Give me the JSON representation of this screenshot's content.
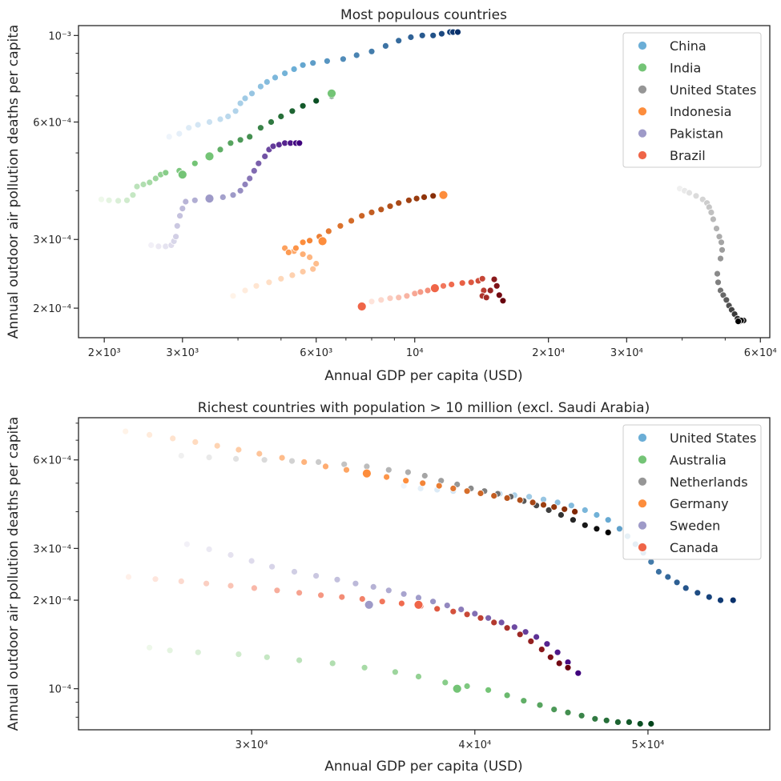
{
  "chart_data": [
    {
      "type": "scatter",
      "title": "Most populous countries",
      "xlabel": "Annual GDP per capita (USD)",
      "ylabel": "Annual outdoor air pollution deaths per capita",
      "xscale": "log",
      "yscale": "log",
      "xlim": [
        1750,
        63000
      ],
      "ylim": [
        0.000168,
        0.00106
      ],
      "legend_position": "top-right",
      "x_ticks": [
        {
          "value": 2000,
          "label": "2×10³"
        },
        {
          "value": 3000,
          "label": "3×10³"
        },
        {
          "value": 6000,
          "label": "6×10³"
        },
        {
          "value": 10000,
          "label": "10⁴"
        },
        {
          "value": 20000,
          "label": "2×10⁴"
        },
        {
          "value": 30000,
          "label": "3×10⁴"
        },
        {
          "value": 60000,
          "label": "6×10⁴"
        }
      ],
      "x_minor_ticks": [
        4000,
        5000,
        7000,
        8000,
        9000,
        40000,
        50000
      ],
      "y_ticks": [
        {
          "value": 0.0002,
          "label": "2×10⁻⁴"
        },
        {
          "value": 0.0003,
          "label": "3×10⁻⁴"
        },
        {
          "value": 0.0006,
          "label": "6×10⁻⁴"
        },
        {
          "value": 0.001,
          "label": "10⁻³"
        }
      ],
      "y_minor_ticks": [
        0.0004,
        0.0005,
        0.0007,
        0.0008,
        0.0009
      ],
      "series": [
        {
          "name": "China",
          "color": "#6baed6",
          "light": "#eef4fb",
          "dark": "#08306b",
          "x": [
            2800,
            2950,
            3100,
            3250,
            3450,
            3650,
            3800,
            3950,
            4050,
            4150,
            4300,
            4500,
            4650,
            4850,
            5100,
            5350,
            5600,
            5900,
            6350,
            6900,
            7400,
            8000,
            8600,
            9200,
            9800,
            10400,
            11000,
            11500,
            12000,
            12200,
            12500
          ],
          "y": [
            0.00055,
            0.00056,
            0.00058,
            0.00059,
            0.0006,
            0.00061,
            0.00062,
            0.00064,
            0.00067,
            0.00069,
            0.00071,
            0.00074,
            0.00076,
            0.00078,
            0.0008,
            0.00082,
            0.00084,
            0.00085,
            0.00086,
            0.00087,
            0.00089,
            0.00091,
            0.00094,
            0.00097,
            0.00099,
            0.001,
            0.001,
            0.00101,
            0.00102,
            0.00102,
            0.00102
          ]
        },
        {
          "name": "India",
          "color": "#74c476",
          "light": "#eef8ea",
          "dark": "#00441b",
          "x": [
            1970,
            2050,
            2150,
            2250,
            2320,
            2370,
            2450,
            2530,
            2610,
            2680,
            2750,
            2950,
            3200,
            3450,
            3650,
            3850,
            4050,
            4250,
            4500,
            4750,
            5000,
            5300,
            5600,
            6000,
            6500
          ],
          "y": [
            0.00038,
            0.000378,
            0.000377,
            0.000378,
            0.00039,
            0.00041,
            0.000415,
            0.00042,
            0.00043,
            0.00044,
            0.000445,
            0.00045,
            0.00047,
            0.00049,
            0.00051,
            0.00053,
            0.00054,
            0.00055,
            0.00058,
            0.0006,
            0.00062,
            0.00064,
            0.00066,
            0.00068,
            0.0007
          ],
          "extra": [
            [
              3000,
              0.00044
            ],
            [
              3450,
              0.00049
            ],
            [
              6500,
              0.00071
            ]
          ]
        },
        {
          "name": "United States",
          "color": "#969696",
          "light": "#f0f0f0",
          "dark": "#000000",
          "x": [
            39500,
            40500,
            41500,
            43000,
            44500,
            45500,
            46000,
            46500,
            47000,
            47800,
            48500,
            49000,
            49200,
            48800,
            48000,
            48200,
            48800,
            49500,
            50300,
            51000,
            51700,
            52500,
            53300,
            54100,
            55000,
            54300,
            53500
          ],
          "y": [
            0.000405,
            0.0004,
            0.000395,
            0.000388,
            0.00038,
            0.000372,
            0.000363,
            0.000352,
            0.000338,
            0.00032,
            0.000305,
            0.000295,
            0.000282,
            0.000268,
            0.000245,
            0.000233,
            0.000222,
            0.000216,
            0.00021,
            0.000203,
            0.000198,
            0.000193,
            0.000188,
            0.000185,
            0.000186,
            0.000186,
            0.000185
          ]
        },
        {
          "name": "Indonesia",
          "color": "#fd8d3c",
          "light": "#fff3e8",
          "dark": "#7f2704",
          "x": [
            3900,
            4150,
            4400,
            4700,
            5000,
            5300,
            5600,
            5900,
            6000,
            5800,
            5600,
            5350,
            5100,
            5200,
            5400,
            5600,
            5800,
            6100,
            6400,
            6800,
            7200,
            7600,
            8000,
            8400,
            8800,
            9200,
            9700,
            10100,
            10500,
            11000,
            11600
          ],
          "y": [
            0.000215,
            0.000222,
            0.000228,
            0.000233,
            0.000238,
            0.000243,
            0.000248,
            0.000252,
            0.00026,
            0.00027,
            0.000275,
            0.00028,
            0.000285,
            0.000278,
            0.000285,
            0.000295,
            0.000298,
            0.000305,
            0.000315,
            0.000325,
            0.000335,
            0.000345,
            0.000352,
            0.000358,
            0.000365,
            0.000372,
            0.000378,
            0.000382,
            0.000385,
            0.000388,
            0.00039
          ],
          "extra": [
            [
              6200,
              0.000297
            ],
            [
              11600,
              0.00039
            ]
          ]
        },
        {
          "name": "Pakistan",
          "color": "#9e9ac8",
          "light": "#f2f0f7",
          "dark": "#3f007d",
          "x": [
            2550,
            2650,
            2750,
            2830,
            2870,
            2900,
            2920,
            2960,
            3000,
            3050,
            3200,
            3450,
            3700,
            3900,
            4050,
            4150,
            4250,
            4350,
            4450,
            4600,
            4700,
            4800,
            4950,
            5100,
            5250,
            5400,
            5500
          ],
          "y": [
            0.00029,
            0.000288,
            0.000288,
            0.00029,
            0.000297,
            0.000305,
            0.000325,
            0.000345,
            0.00036,
            0.000375,
            0.000378,
            0.000382,
            0.000385,
            0.00039,
            0.0004,
            0.000415,
            0.00043,
            0.00045,
            0.00047,
            0.00049,
            0.00051,
            0.00052,
            0.000525,
            0.00053,
            0.00053,
            0.00053,
            0.00053
          ],
          "extra": [
            [
              3450,
              0.000382
            ]
          ]
        },
        {
          "name": "Brazil",
          "color": "#ef6548",
          "light": "#fff0e9",
          "dark": "#67000d",
          "x": [
            7600,
            8000,
            8400,
            8800,
            9200,
            9600,
            10000,
            10300,
            10700,
            11100,
            11600,
            12100,
            12800,
            13400,
            13900,
            14200,
            14300,
            14200,
            14500,
            14800,
            15100,
            15300,
            15500,
            15800
          ],
          "y": [
            0.000205,
            0.000208,
            0.00021,
            0.000212,
            0.000213,
            0.000215,
            0.000218,
            0.00022,
            0.000222,
            0.000225,
            0.000228,
            0.00023,
            0.000232,
            0.000233,
            0.000235,
            0.000238,
            0.000222,
            0.000215,
            0.000213,
            0.000222,
            0.000237,
            0.000228,
            0.000216,
            0.000209
          ],
          "extra": [
            [
              7600,
              0.000202
            ],
            [
              11100,
              0.000225
            ]
          ]
        }
      ]
    },
    {
      "type": "scatter",
      "title": "Richest countries with population > 10 million (excl. Saudi Arabia)",
      "xlabel": "Annual GDP per capita (USD)",
      "ylabel": "Annual outdoor air pollution deaths per capita",
      "xscale": "log",
      "yscale": "log",
      "xlim": [
        24000,
        58500
      ],
      "ylim": [
        7.25e-05,
        0.000835
      ],
      "legend_position": "top-right",
      "x_ticks": [
        {
          "value": 30000,
          "label": "3×10⁴"
        },
        {
          "value": 40000,
          "label": "4×10⁴"
        },
        {
          "value": 50000,
          "label": "5×10⁴"
        }
      ],
      "x_minor_ticks": [],
      "y_ticks": [
        {
          "value": 0.0001,
          "label": "10⁻⁴"
        },
        {
          "value": 0.0002,
          "label": "2×10⁻⁴"
        },
        {
          "value": 0.0003,
          "label": "3×10⁻⁴"
        },
        {
          "value": 0.0006,
          "label": "6×10⁻⁴"
        }
      ],
      "y_minor_ticks": [
        8e-05,
        9e-05,
        0.0004,
        0.0005,
        0.0007,
        0.0008
      ],
      "series": [
        {
          "name": "United States",
          "color": "#6baed6",
          "light": "#eef4fb",
          "dark": "#08306b",
          "x": [
            36500,
            37300,
            38100,
            38900,
            39600,
            40400,
            41300,
            42100,
            42900,
            43700,
            44500,
            45300,
            46100,
            46800,
            47500,
            48200,
            48700,
            49200,
            49700,
            50200,
            50700,
            51300,
            51900,
            52500,
            53300,
            54100,
            54900,
            55800
          ],
          "y": [
            0.00049,
            0.00048,
            0.000475,
            0.00047,
            0.000468,
            0.000465,
            0.00046,
            0.000455,
            0.00045,
            0.00044,
            0.00043,
            0.00042,
            0.000405,
            0.00039,
            0.000375,
            0.00035,
            0.00033,
            0.00031,
            0.00029,
            0.00027,
            0.00025,
            0.00024,
            0.00023,
            0.00022,
            0.000212,
            0.000205,
            0.0002,
            0.0002
          ]
        },
        {
          "name": "Australia",
          "color": "#74c476",
          "light": "#eef8ea",
          "dark": "#00441b",
          "x": [
            26300,
            27000,
            28000,
            29500,
            30600,
            31900,
            33300,
            34700,
            36100,
            37200,
            38500,
            39600,
            40700,
            41700,
            42600,
            43500,
            44300,
            45100,
            45900,
            46700,
            47400,
            48100,
            48800,
            49500,
            50200
          ],
          "y": [
            0.000138,
            0.000135,
            0.000133,
            0.000131,
            0.000128,
            0.000125,
            0.000122,
            0.000118,
            0.000114,
            0.00011,
            0.000105,
            0.000102,
            9.9e-05,
            9.5e-05,
            9.1e-05,
            8.8e-05,
            8.5e-05,
            8.3e-05,
            8.1e-05,
            7.9e-05,
            7.8e-05,
            7.7e-05,
            7.7e-05,
            7.6e-05,
            7.6e-05
          ],
          "extra": [
            [
              39100,
              0.0001
            ]
          ]
        },
        {
          "name": "Netherlands",
          "color": "#969696",
          "light": "#f0f0f0",
          "dark": "#000000",
          "x": [
            27400,
            28400,
            29400,
            30500,
            31600,
            32700,
            33800,
            34800,
            35800,
            36700,
            37500,
            38300,
            39100,
            39800,
            40500,
            41200,
            41900,
            42600,
            43300,
            44000,
            44700,
            45400,
            46100,
            46800,
            47500
          ],
          "y": [
            0.00062,
            0.000612,
            0.000605,
            0.0006,
            0.000595,
            0.00059,
            0.00058,
            0.00057,
            0.000555,
            0.000545,
            0.00053,
            0.00051,
            0.000495,
            0.00048,
            0.00047,
            0.00046,
            0.00045,
            0.000435,
            0.00042,
            0.000405,
            0.00039,
            0.000375,
            0.00036,
            0.00035,
            0.00034
          ]
        },
        {
          "name": "Germany",
          "color": "#fd8d3c",
          "light": "#fff3e8",
          "dark": "#7f2704",
          "x": [
            25500,
            26300,
            27100,
            27900,
            28700,
            29500,
            30300,
            31200,
            32100,
            33000,
            33900,
            34800,
            35700,
            36600,
            37400,
            38200,
            38900,
            39600,
            40300,
            41000,
            41700,
            42400,
            43100,
            43700,
            44300,
            44900,
            45500
          ],
          "y": [
            0.00075,
            0.00073,
            0.00071,
            0.00069,
            0.00067,
            0.00065,
            0.00063,
            0.00061,
            0.00059,
            0.00057,
            0.000555,
            0.00054,
            0.000525,
            0.00051,
            0.0005,
            0.00049,
            0.00048,
            0.00047,
            0.000462,
            0.000453,
            0.000445,
            0.000438,
            0.00043,
            0.000422,
            0.000415,
            0.000408,
            0.0004
          ],
          "extra": [
            [
              34800,
              0.00054
            ]
          ]
        },
        {
          "name": "Sweden",
          "color": "#9e9ac8",
          "light": "#f2f0f7",
          "dark": "#3f007d",
          "x": [
            27600,
            28400,
            29200,
            30000,
            30800,
            31700,
            32600,
            33500,
            34300,
            35100,
            35800,
            36500,
            37200,
            37900,
            38600,
            39300,
            40000,
            40700,
            41400,
            42100,
            42700,
            43300,
            43900,
            44500,
            45100,
            45700
          ],
          "y": [
            0.00031,
            0.000298,
            0.000285,
            0.000272,
            0.00026,
            0.00025,
            0.000242,
            0.000235,
            0.000228,
            0.000222,
            0.000216,
            0.00021,
            0.000204,
            0.000198,
            0.000192,
            0.000186,
            0.00018,
            0.000174,
            0.000168,
            0.000162,
            0.000156,
            0.00015,
            0.000142,
            0.000133,
            0.000123,
            0.000113
          ],
          "extra": [
            [
              34900,
              0.000193
            ]
          ]
        },
        {
          "name": "Canada",
          "color": "#ef6548",
          "light": "#fff0e9",
          "dark": "#67000d",
          "x": [
            25600,
            26500,
            27400,
            28300,
            29200,
            30100,
            31000,
            31900,
            32800,
            33700,
            34600,
            35500,
            36400,
            37300,
            38100,
            38900,
            39600,
            40300,
            41000,
            41700,
            42400,
            43000,
            43600,
            44100,
            44600,
            45100
          ],
          "y": [
            0.00024,
            0.000236,
            0.000232,
            0.000228,
            0.000224,
            0.00022,
            0.000216,
            0.000212,
            0.000208,
            0.000205,
            0.000202,
            0.000198,
            0.000195,
            0.000191,
            0.000187,
            0.000183,
            0.000179,
            0.000174,
            0.000168,
            0.000161,
            0.000153,
            0.000145,
            0.000136,
            0.000128,
            0.000122,
            0.000118
          ],
          "extra": [
            [
              37200,
              0.000193
            ]
          ]
        }
      ]
    }
  ]
}
